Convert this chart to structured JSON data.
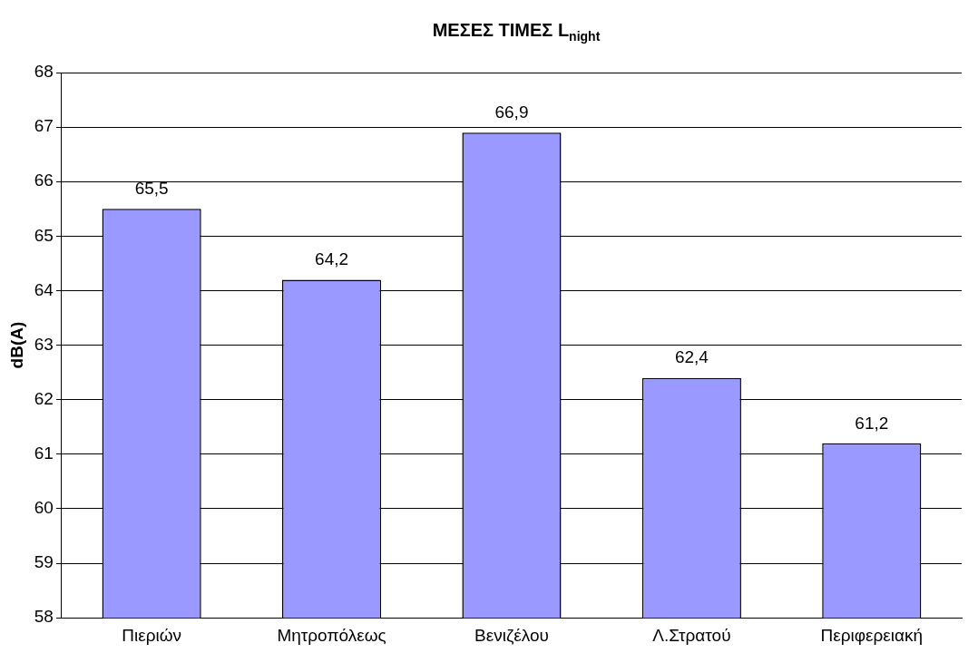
{
  "chart_data": {
    "type": "bar",
    "title": "ΜΕΣΕΣ ΤΙΜΕΣ L$_{night}$",
    "ylabel": "dB(A)",
    "categories": [
      "Πιεριών",
      "Μητροπόλεως",
      "Βενιζέλου",
      "Λ.Στρατού",
      "Περιφερειακή"
    ],
    "values": [
      65.5,
      64.2,
      66.9,
      62.4,
      61.2
    ],
    "value_labels": [
      "65,5",
      "64,2",
      "66,9",
      "62,4",
      "61,2"
    ],
    "color": "#9999ff",
    "ylim": [
      58,
      68
    ],
    "yticks": [
      58,
      59,
      60,
      61,
      62,
      63,
      64,
      65,
      66,
      67,
      68
    ],
    "grid": "y",
    "legend": false
  }
}
